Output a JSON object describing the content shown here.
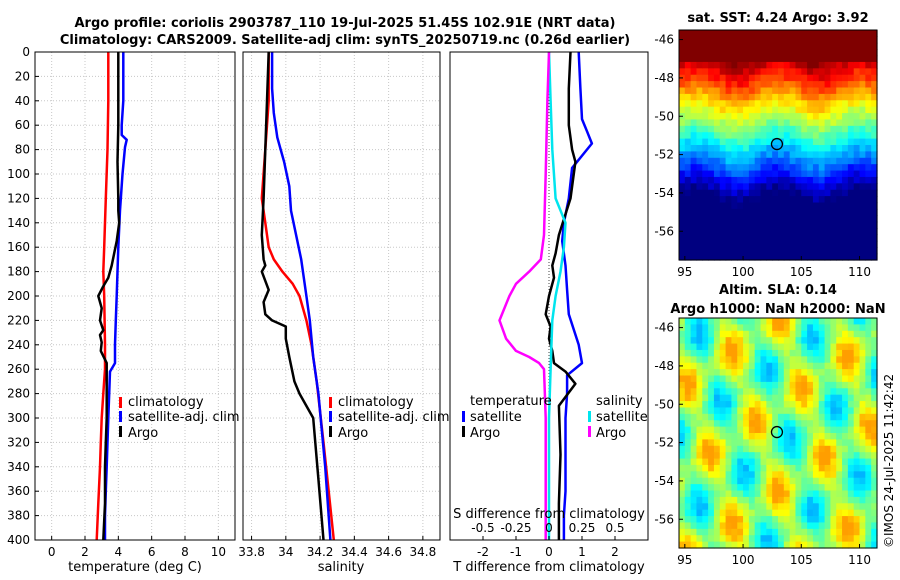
{
  "title": {
    "line1": "Argo profile: coriolis 2903787_110 19-Jul-2025 51.45S 102.91E (NRT data)",
    "line2": "Climatology: CARS2009. Satellite-adj clim: synTS_20250719.nc (0.26d earlier)"
  },
  "colors": {
    "climatology": "#ff0000",
    "satellite": "#0000ff",
    "argo": "#000000",
    "sal_satellite": "#00e5ee",
    "sal_argo": "#ff00ff",
    "grid": "#c8c8c8"
  },
  "chart_data": [
    {
      "type": "line",
      "id": "temperature",
      "xlabel": "temperature (deg C)",
      "ylabel": "",
      "xlim": [
        -1,
        11
      ],
      "ylim": [
        0,
        400
      ],
      "xticks": [
        0,
        2,
        4,
        6,
        8,
        10
      ],
      "yticks": [
        0,
        20,
        40,
        60,
        80,
        100,
        120,
        140,
        160,
        180,
        200,
        220,
        240,
        260,
        280,
        300,
        320,
        340,
        360,
        380,
        400
      ],
      "series": [
        {
          "name": "climatology",
          "color": "#ff0000",
          "x": [
            3.4,
            3.4,
            3.35,
            3.25,
            3.15,
            3.1,
            3.15,
            3.2,
            3.2,
            3.1,
            3.0,
            2.95,
            2.9,
            2.8,
            2.7
          ],
          "y": [
            0,
            40,
            80,
            120,
            160,
            180,
            200,
            240,
            260,
            280,
            300,
            320,
            340,
            370,
            400
          ]
        },
        {
          "name": "satellite-adj. clim",
          "color": "#0000ff",
          "x": [
            4.3,
            4.3,
            4.2,
            4.2,
            4.5,
            4.4,
            4.25,
            4.1,
            4.0,
            3.95,
            3.9,
            3.85,
            3.8,
            3.8,
            3.5,
            3.45,
            3.4,
            3.35,
            3.3,
            3.25,
            3.2,
            3.2
          ],
          "y": [
            0,
            40,
            60,
            68,
            72,
            78,
            100,
            130,
            160,
            180,
            200,
            220,
            240,
            255,
            262,
            280,
            300,
            320,
            340,
            360,
            380,
            400
          ]
        },
        {
          "name": "Argo",
          "color": "#000000",
          "x": [
            4.0,
            4.0,
            4.0,
            3.95,
            4.0,
            4.0,
            4.05,
            3.9,
            3.75,
            3.6,
            3.5,
            3.4,
            3.1,
            2.8,
            3.0,
            2.9,
            3.1,
            2.9,
            3.0,
            2.95,
            3.3,
            3.3,
            3.3,
            3.3,
            3.25,
            3.2,
            3.2,
            3.1
          ],
          "y": [
            0,
            30,
            60,
            90,
            120,
            130,
            140,
            155,
            165,
            175,
            180,
            185,
            192,
            200,
            210,
            220,
            228,
            232,
            238,
            245,
            255,
            262,
            280,
            300,
            320,
            340,
            370,
            400
          ]
        }
      ],
      "legend": [
        "climatology",
        "satellite-adj. clim",
        "Argo"
      ],
      "legend_position": "bottom-right"
    },
    {
      "type": "line",
      "id": "salinity",
      "xlabel": "salinity",
      "ylabel": "",
      "xlim": [
        33.75,
        34.9
      ],
      "ylim": [
        0,
        400
      ],
      "xticks": [
        33.8,
        34,
        34.2,
        34.4,
        34.6,
        34.8
      ],
      "series": [
        {
          "name": "climatology",
          "color": "#ff0000",
          "x": [
            33.9,
            33.9,
            33.88,
            33.86,
            33.88,
            33.9,
            33.93,
            33.98,
            34.04,
            34.08,
            34.12,
            34.15,
            34.18,
            34.22,
            34.25,
            34.28
          ],
          "y": [
            0,
            40,
            80,
            120,
            140,
            160,
            170,
            180,
            190,
            200,
            220,
            240,
            270,
            320,
            360,
            400
          ]
        },
        {
          "name": "satellite-adj. clim",
          "color": "#0000ff",
          "x": [
            33.92,
            33.92,
            33.93,
            33.95,
            33.99,
            34.02,
            34.03,
            34.06,
            34.09,
            34.12,
            34.14,
            34.16,
            34.19,
            34.23,
            34.26
          ],
          "y": [
            0,
            30,
            50,
            70,
            90,
            110,
            130,
            150,
            170,
            200,
            220,
            250,
            280,
            340,
            400
          ]
        },
        {
          "name": "Argo",
          "color": "#000000",
          "x": [
            33.9,
            33.89,
            33.88,
            33.87,
            33.86,
            33.87,
            33.88,
            33.86,
            33.9,
            33.87,
            33.88,
            33.92,
            34.0,
            34.0,
            34.02,
            34.05,
            34.08,
            34.16,
            34.19,
            34.22
          ],
          "y": [
            0,
            40,
            80,
            120,
            150,
            170,
            175,
            180,
            195,
            205,
            215,
            220,
            225,
            235,
            250,
            270,
            280,
            300,
            350,
            400
          ]
        }
      ],
      "legend": [
        "climatology",
        "satellite-adj. clim",
        "Argo"
      ],
      "legend_position": "bottom-right"
    },
    {
      "type": "line",
      "id": "difference",
      "xlabel": "T difference from climatology",
      "xlabel_top": "S difference from climatology",
      "xlim": [
        -3,
        3
      ],
      "ylim": [
        0,
        400
      ],
      "xticks": [
        -2,
        -1,
        0,
        1,
        2
      ],
      "xticks_top_labels": [
        "-0.5",
        "-0.25",
        "0",
        "0.25",
        "0.5"
      ],
      "series": [
        {
          "name": "temperature satellite",
          "color": "#0000ff",
          "x": [
            0.9,
            0.95,
            1.0,
            1.15,
            1.3,
            0.7,
            0.6,
            0.45,
            0.4,
            0.5,
            0.55,
            0.6,
            0.9,
            1.0,
            0.55,
            0.55,
            0.5,
            0.5,
            0.5,
            0.45,
            0.45
          ],
          "y": [
            0,
            30,
            55,
            65,
            75,
            95,
            120,
            140,
            155,
            175,
            195,
            215,
            240,
            255,
            265,
            280,
            300,
            330,
            360,
            380,
            400
          ]
        },
        {
          "name": "temperature Argo",
          "color": "#000000",
          "x": [
            0.65,
            0.6,
            0.6,
            0.7,
            0.8,
            0.65,
            0.3,
            0.2,
            0.1,
            0.15,
            0.0,
            -0.1,
            0.05,
            0.0,
            0.1,
            0.15,
            0.5,
            0.8,
            0.3,
            0.35,
            0.3,
            0.3
          ],
          "y": [
            0,
            30,
            60,
            80,
            90,
            120,
            150,
            165,
            175,
            185,
            200,
            215,
            225,
            235,
            245,
            255,
            262,
            272,
            290,
            330,
            370,
            400
          ]
        },
        {
          "name": "salinity satellite",
          "color": "#00e5ee",
          "x": [
            0.0,
            0.05,
            0.1,
            0.2,
            0.5,
            0.45,
            0.35,
            0.2,
            0.1,
            0.05,
            0.0,
            0.0,
            0.0
          ],
          "y": [
            0,
            40,
            80,
            120,
            140,
            160,
            180,
            200,
            220,
            260,
            300,
            350,
            400
          ]
        },
        {
          "name": "salinity Argo",
          "color": "#ff00ff",
          "x": [
            0.0,
            -0.05,
            -0.1,
            -0.15,
            -0.25,
            -0.6,
            -1.0,
            -1.2,
            -1.5,
            -1.3,
            -1.0,
            -0.6,
            -0.3,
            -0.15,
            -0.1,
            -0.1,
            -0.1
          ],
          "y": [
            0,
            40,
            100,
            150,
            170,
            180,
            190,
            200,
            220,
            235,
            245,
            250,
            255,
            260,
            300,
            350,
            400
          ]
        }
      ],
      "legend_left": {
        "title": "temperature",
        "items": [
          "satellite",
          "Argo"
        ]
      },
      "legend_right": {
        "title": "salinity",
        "items": [
          "satellite",
          "Argo"
        ]
      }
    },
    {
      "type": "heatmap",
      "id": "sst_map",
      "title": "sat. SST: 4.24 Argo: 3.92",
      "xlim": [
        94.5,
        111.5
      ],
      "ylim": [
        -57.5,
        -45.5
      ],
      "xticks": [
        95,
        100,
        105,
        110
      ],
      "yticks": [
        -46,
        -48,
        -50,
        -52,
        -54,
        -56
      ],
      "marker": {
        "lon": 102.91,
        "lat": -51.45
      }
    },
    {
      "type": "heatmap",
      "id": "sla_map",
      "title_line1": "Altim. SLA: 0.14",
      "title_line2": "Argo h1000: NaN h2000: NaN",
      "xlim": [
        94.5,
        111.5
      ],
      "ylim": [
        -57.5,
        -45.5
      ],
      "xticks": [
        95,
        100,
        105,
        110
      ],
      "yticks": [
        -46,
        -48,
        -50,
        -52,
        -54,
        -56
      ],
      "marker": {
        "lon": 102.91,
        "lat": -51.45
      }
    }
  ],
  "credit": "©IMOS 24-Jul-2025 11:42:42"
}
